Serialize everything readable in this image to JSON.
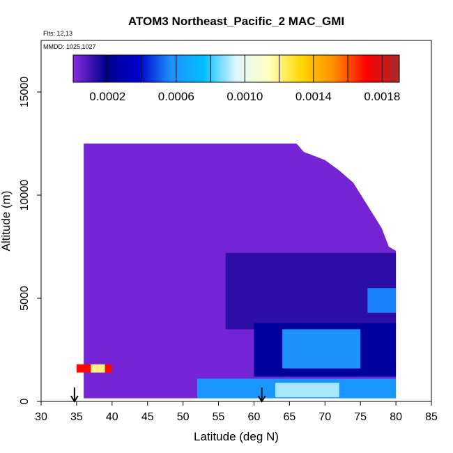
{
  "chart_data": {
    "type": "heatmap",
    "title": "ATOM3 Northeast_Pacific_2 MAC_GMI",
    "flights_label": "Flts: 12,13",
    "mmdd_label": "MMDD: 1025,1027",
    "xlabel": "Latitude (deg N)",
    "ylabel": "Altitude (m)",
    "xlim": [
      30,
      85
    ],
    "ylim": [
      0,
      17500
    ],
    "x_ticks": [
      30,
      35,
      40,
      45,
      50,
      55,
      60,
      65,
      70,
      75,
      80,
      85
    ],
    "y_ticks": [
      0,
      5000,
      10000,
      15000
    ],
    "y_tick_labels": [
      "0",
      "5000",
      "10000",
      "15000"
    ],
    "grid": false,
    "colorbar": {
      "placement": "top-inside",
      "vmin": 0.0,
      "vmax": 0.0019,
      "tick_values": [
        0.0002,
        0.0006,
        0.001,
        0.0014,
        0.0018
      ],
      "tick_labels": [
        "0.0002",
        "0.0006",
        "0.0010",
        "0.0014",
        "0.0018"
      ],
      "colors": [
        "#8A2BE2",
        "#00008B",
        "#0000CD",
        "#1E90FF",
        "#00BFFF",
        "#E0F7FF",
        "#FFFFC0",
        "#FFD700",
        "#FF8C00",
        "#FF0000",
        "#A52A2A"
      ]
    },
    "arrows_latitude": [
      34.7,
      61.1
    ],
    "coverage_top_altitude": [
      [
        36,
        12500
      ],
      [
        42,
        12500
      ],
      [
        50,
        12500
      ],
      [
        58,
        12500
      ],
      [
        66,
        12500
      ],
      [
        67,
        12100
      ],
      [
        70,
        11700
      ],
      [
        72,
        11200
      ],
      [
        74,
        10600
      ],
      [
        76,
        9500
      ],
      [
        78,
        8400
      ],
      [
        79,
        7500
      ],
      [
        80,
        7300
      ]
    ],
    "coverage_bottom_altitude": 150,
    "regions": [
      {
        "lat": [
          35,
          80
        ],
        "alt": [
          150,
          12500
        ],
        "value": 3e-05
      },
      {
        "lat": [
          56,
          80
        ],
        "alt": [
          3500,
          7200
        ],
        "value": 0.00013
      },
      {
        "lat": [
          60,
          80
        ],
        "alt": [
          1200,
          3800
        ],
        "value": 0.00024
      },
      {
        "lat": [
          64,
          75
        ],
        "alt": [
          1600,
          3500
        ],
        "value": 0.00058
      },
      {
        "lat": [
          52,
          80
        ],
        "alt": [
          150,
          1100
        ],
        "value": 0.0006
      },
      {
        "lat": [
          63,
          72
        ],
        "alt": [
          200,
          900
        ],
        "value": 0.0009
      },
      {
        "lat": [
          76,
          80
        ],
        "alt": [
          4300,
          5500
        ],
        "value": 0.00055
      },
      {
        "lat": [
          35,
          40
        ],
        "alt": [
          1400,
          1800
        ],
        "value": 0.0017
      },
      {
        "lat": [
          37,
          39
        ],
        "alt": [
          1400,
          1800
        ],
        "value": 0.0012
      }
    ]
  }
}
